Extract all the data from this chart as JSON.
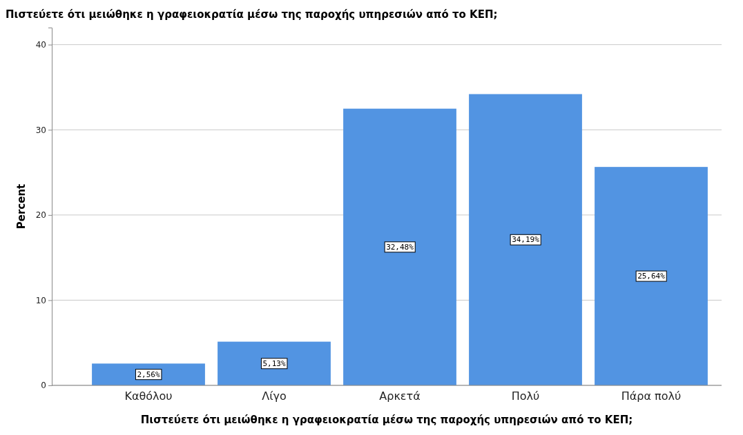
{
  "chart_data": {
    "type": "bar",
    "title": "Πιστεύετε ότι μειώθηκε η γραφειοκρατία μέσω της παροχής υπηρεσιών από το ΚΕΠ;",
    "xlabel": "Πιστεύετε ότι μειώθηκε η γραφειοκρατία μέσω της παροχής υπηρεσιών από το ΚΕΠ;",
    "ylabel": "Percent",
    "categories": [
      "Καθόλου",
      "Λίγο",
      "Αρκετά",
      "Πολύ",
      "Πάρα πολύ"
    ],
    "values": [
      2.56,
      5.13,
      32.48,
      34.19,
      25.64
    ],
    "value_labels": [
      "2,56%",
      "5,13%",
      "32,48%",
      "34,19%",
      "25,64%"
    ],
    "color": "#5294e2",
    "ylim": [
      0,
      42
    ],
    "yticks": [
      0,
      10,
      20,
      30,
      40
    ],
    "grid": "y"
  }
}
